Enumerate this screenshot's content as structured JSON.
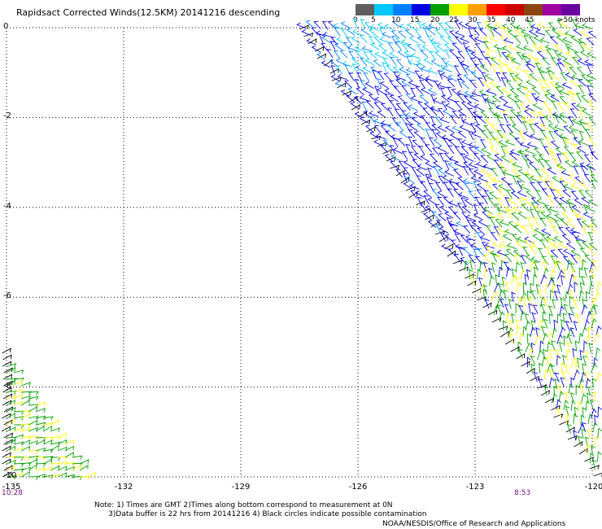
{
  "title": "Rapidsact Corrected Winds(12.5KM) 20141216 descending",
  "colorbar": {
    "labels": [
      "0",
      "5",
      "10",
      "15",
      "20",
      "25",
      "30",
      "35",
      "40",
      "45",
      ">50 knots"
    ],
    "colors": [
      "#5e5e5e",
      "#00c8ff",
      "#0080ff",
      "#0000e0",
      "#00a000",
      "#ffff00",
      "#ffa000",
      "#ff0000",
      "#cc0000",
      "#8b4513",
      "#a000a0",
      "#6a00a0"
    ]
  },
  "axes": {
    "lat_labels": [
      "0",
      "-2",
      "-4",
      "-6",
      "-8",
      "-10"
    ],
    "lon_labels": [
      "-135",
      "-132",
      "-129",
      "-126",
      "-123",
      "-120"
    ],
    "lat_values": [
      0,
      -2,
      -4,
      -6,
      -8,
      -10
    ],
    "lon_values": [
      -135,
      -132,
      -129,
      -126,
      -123,
      -120
    ]
  },
  "times": {
    "left": "10:28",
    "right": "8:53"
  },
  "notes": {
    "line1": "Note: 1) Times are GMT 2)Times along bottom correspond to measurement at 0N",
    "line2": "      3)Data buffer is 22 hrs from 20141216 4) Black circles indicate possible contamination"
  },
  "credit": "NOAA/NESDIS/Office of Research and Applications"
}
